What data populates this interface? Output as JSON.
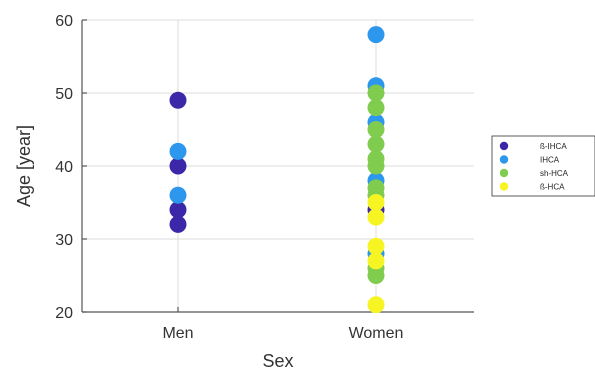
{
  "chart_data": {
    "type": "scatter",
    "xlabel": "Sex",
    "ylabel": "Age [year]",
    "categories": [
      "Men",
      "Women"
    ],
    "ylim": [
      20,
      60
    ],
    "yticks": [
      20,
      30,
      40,
      50,
      60
    ],
    "grid": true,
    "legend_position": "right",
    "series": [
      {
        "name": "ß-IHCA",
        "color": "#3b28a8",
        "points": [
          {
            "x": "Men",
            "y": 49
          },
          {
            "x": "Men",
            "y": 40
          },
          {
            "x": "Men",
            "y": 34
          },
          {
            "x": "Men",
            "y": 32
          },
          {
            "x": "Women",
            "y": 34
          }
        ]
      },
      {
        "name": "IHCA",
        "color": "#2c97ec",
        "points": [
          {
            "x": "Men",
            "y": 42
          },
          {
            "x": "Men",
            "y": 36
          },
          {
            "x": "Women",
            "y": 58
          },
          {
            "x": "Women",
            "y": 51
          },
          {
            "x": "Women",
            "y": 46
          },
          {
            "x": "Women",
            "y": 38
          },
          {
            "x": "Women",
            "y": 28
          }
        ]
      },
      {
        "name": "sh-HCA",
        "color": "#7fcc4e",
        "points": [
          {
            "x": "Women",
            "y": 50
          },
          {
            "x": "Women",
            "y": 48
          },
          {
            "x": "Women",
            "y": 45
          },
          {
            "x": "Women",
            "y": 43
          },
          {
            "x": "Women",
            "y": 41
          },
          {
            "x": "Women",
            "y": 40
          },
          {
            "x": "Women",
            "y": 37
          },
          {
            "x": "Women",
            "y": 36
          },
          {
            "x": "Women",
            "y": 26
          },
          {
            "x": "Women",
            "y": 25
          }
        ]
      },
      {
        "name": "ß-HCA",
        "color": "#f7f424",
        "points": [
          {
            "x": "Women",
            "y": 35
          },
          {
            "x": "Women",
            "y": 33
          },
          {
            "x": "Women",
            "y": 29
          },
          {
            "x": "Women",
            "y": 27
          },
          {
            "x": "Women",
            "y": 21
          }
        ]
      }
    ]
  }
}
